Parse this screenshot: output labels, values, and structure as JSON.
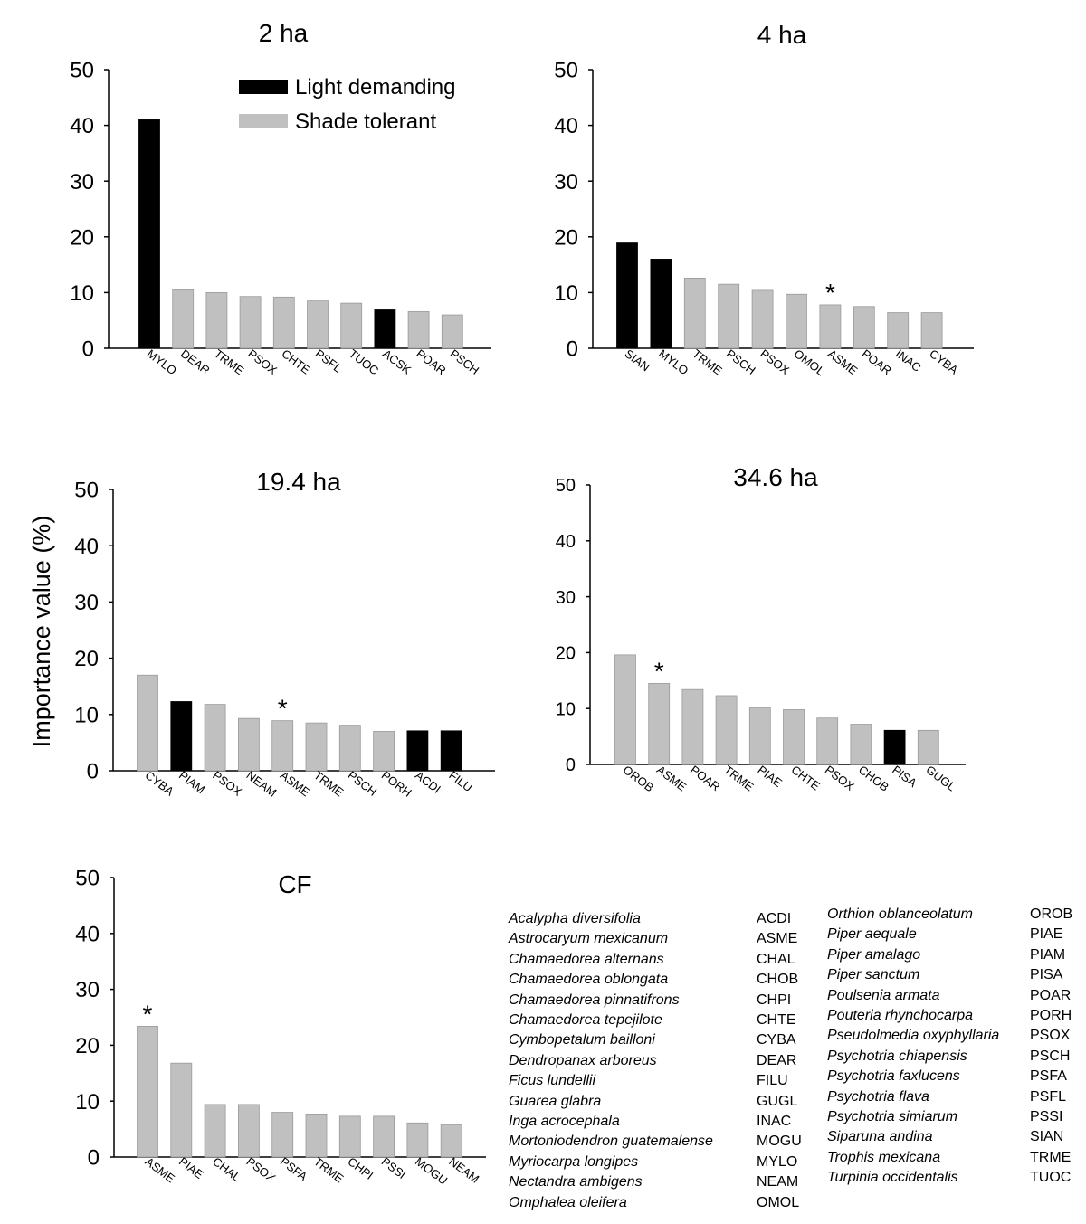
{
  "figure_ylabel": "Importance value (%)",
  "legend": {
    "light_label": "Light demanding",
    "shade_label": "Shade tolerant",
    "light_color": "#000000",
    "shade_color": "#c0c0c0"
  },
  "chart_data": [
    {
      "type": "bar",
      "title": "2 ha",
      "ylim": [
        0,
        50
      ],
      "yticks": [
        0,
        10,
        20,
        30,
        40,
        50
      ],
      "categories": [
        "MYLO",
        "DEAR",
        "TRME",
        "PSOX",
        "CHTE",
        "PSFL",
        "TUOC",
        "ACSK",
        "POAR",
        "PSCH"
      ],
      "values": [
        41,
        10.5,
        10,
        9.3,
        9.2,
        8.5,
        8.1,
        6.9,
        6.6,
        6
      ],
      "groups": [
        "light",
        "shade",
        "shade",
        "shade",
        "shade",
        "shade",
        "shade",
        "light",
        "shade",
        "shade"
      ],
      "asterisk": []
    },
    {
      "type": "bar",
      "title": "4 ha",
      "ylim": [
        0,
        50
      ],
      "yticks": [
        0,
        10,
        20,
        30,
        40,
        50
      ],
      "categories": [
        "SIAN",
        "MYLO",
        "TRME",
        "PSCH",
        "PSOX",
        "OMOL",
        "ASME",
        "POAR",
        "INAC",
        "CYBA"
      ],
      "values": [
        18.9,
        16,
        12.6,
        11.5,
        10.4,
        9.7,
        7.8,
        7.5,
        6.4,
        6.4
      ],
      "groups": [
        "light",
        "light",
        "shade",
        "shade",
        "shade",
        "shade",
        "shade",
        "shade",
        "shade",
        "shade"
      ],
      "asterisk": [
        "ASME"
      ]
    },
    {
      "type": "bar",
      "title": "19.4 ha",
      "ylim": [
        0,
        50
      ],
      "yticks": [
        0,
        10,
        20,
        30,
        40,
        50
      ],
      "categories": [
        "CYBA",
        "PIAM",
        "PSOX",
        "NEAM",
        "ASME",
        "TRME",
        "PSCH",
        "PORH",
        "ACDI",
        "FILU"
      ],
      "values": [
        17,
        12.3,
        11.8,
        9.3,
        8.9,
        8.5,
        8.1,
        7,
        7.1,
        7.1
      ],
      "groups": [
        "shade",
        "light",
        "shade",
        "shade",
        "shade",
        "shade",
        "shade",
        "shade",
        "light",
        "light"
      ],
      "asterisk": [
        "ASME"
      ]
    },
    {
      "type": "bar",
      "title": "34.6 ha",
      "ylim": [
        0,
        50
      ],
      "yticks": [
        0,
        10,
        20,
        30,
        40,
        50
      ],
      "categories": [
        "OROB",
        "ASME",
        "POAR",
        "TRME",
        "PIAE",
        "CHTE",
        "PSOX",
        "CHOB",
        "PISA",
        "GUGL"
      ],
      "values": [
        19.6,
        14.5,
        13.4,
        12.3,
        10.1,
        9.8,
        8.3,
        7.2,
        6.1,
        6.1
      ],
      "groups": [
        "shade",
        "shade",
        "shade",
        "shade",
        "shade",
        "shade",
        "shade",
        "shade",
        "light",
        "shade"
      ],
      "asterisk": [
        "ASME"
      ]
    },
    {
      "type": "bar",
      "title": "CF",
      "ylim": [
        0,
        50
      ],
      "yticks": [
        0,
        10,
        20,
        30,
        40,
        50
      ],
      "categories": [
        "ASME",
        "PIAE",
        "CHAL",
        "PSOX",
        "PSFA",
        "TRME",
        "CHPI",
        "PSSI",
        "MOGU",
        "NEAM"
      ],
      "values": [
        23.4,
        16.8,
        9.4,
        9.4,
        8,
        7.7,
        7.3,
        7.3,
        6.1,
        5.8
      ],
      "groups": [
        "shade",
        "shade",
        "shade",
        "shade",
        "shade",
        "shade",
        "shade",
        "shade",
        "shade",
        "shade"
      ],
      "asterisk": [
        "ASME"
      ]
    }
  ],
  "species_key": {
    "left": [
      {
        "name": "Acalypha diversifolia",
        "code": "ACDI"
      },
      {
        "name": "Astrocaryum mexicanum",
        "code": "ASME"
      },
      {
        "name": "Chamaedorea alternans",
        "code": "CHAL"
      },
      {
        "name": "Chamaedorea oblongata",
        "code": "CHOB"
      },
      {
        "name": "Chamaedorea pinnatifrons",
        "code": "CHPI"
      },
      {
        "name": "Chamaedorea tepejilote",
        "code": "CHTE"
      },
      {
        "name": "Cymbopetalum bailloni",
        "code": "CYBA"
      },
      {
        "name": "Dendropanax arboreus",
        "code": "DEAR"
      },
      {
        "name": "Ficus lundellii",
        "code": "FILU"
      },
      {
        "name": "Guarea glabra",
        "code": "GUGL"
      },
      {
        "name": "Inga acrocephala",
        "code": "INAC"
      },
      {
        "name": "Mortoniodendron guatemalense",
        "code": "MOGU"
      },
      {
        "name": "Myriocarpa longipes",
        "code": "MYLO"
      },
      {
        "name": "Nectandra ambigens",
        "code": "NEAM"
      },
      {
        "name": "Omphalea oleifera",
        "code": "OMOL"
      }
    ],
    "right": [
      {
        "name": "Orthion oblanceolatum",
        "code": "OROB"
      },
      {
        "name": "Piper aequale",
        "code": "PIAE"
      },
      {
        "name": "Piper amalago",
        "code": "PIAM"
      },
      {
        "name": "Piper sanctum",
        "code": "PISA"
      },
      {
        "name": "Poulsenia armata",
        "code": "POAR"
      },
      {
        "name": "Pouteria rhynchocarpa",
        "code": "PORH"
      },
      {
        "name": "Pseudolmedia oxyphyllaria",
        "code": "PSOX"
      },
      {
        "name": "Psychotria chiapensis",
        "code": "PSCH"
      },
      {
        "name": "Psychotria faxlucens",
        "code": "PSFA"
      },
      {
        "name": "Psychotria flava",
        "code": "PSFL"
      },
      {
        "name": "Psychotria simiarum",
        "code": "PSSI"
      },
      {
        "name": "Siparuna andina",
        "code": "SIAN"
      },
      {
        "name": "Trophis mexicana",
        "code": "TRME"
      },
      {
        "name": "Turpinia occidentalis",
        "code": "TUOC"
      }
    ]
  }
}
